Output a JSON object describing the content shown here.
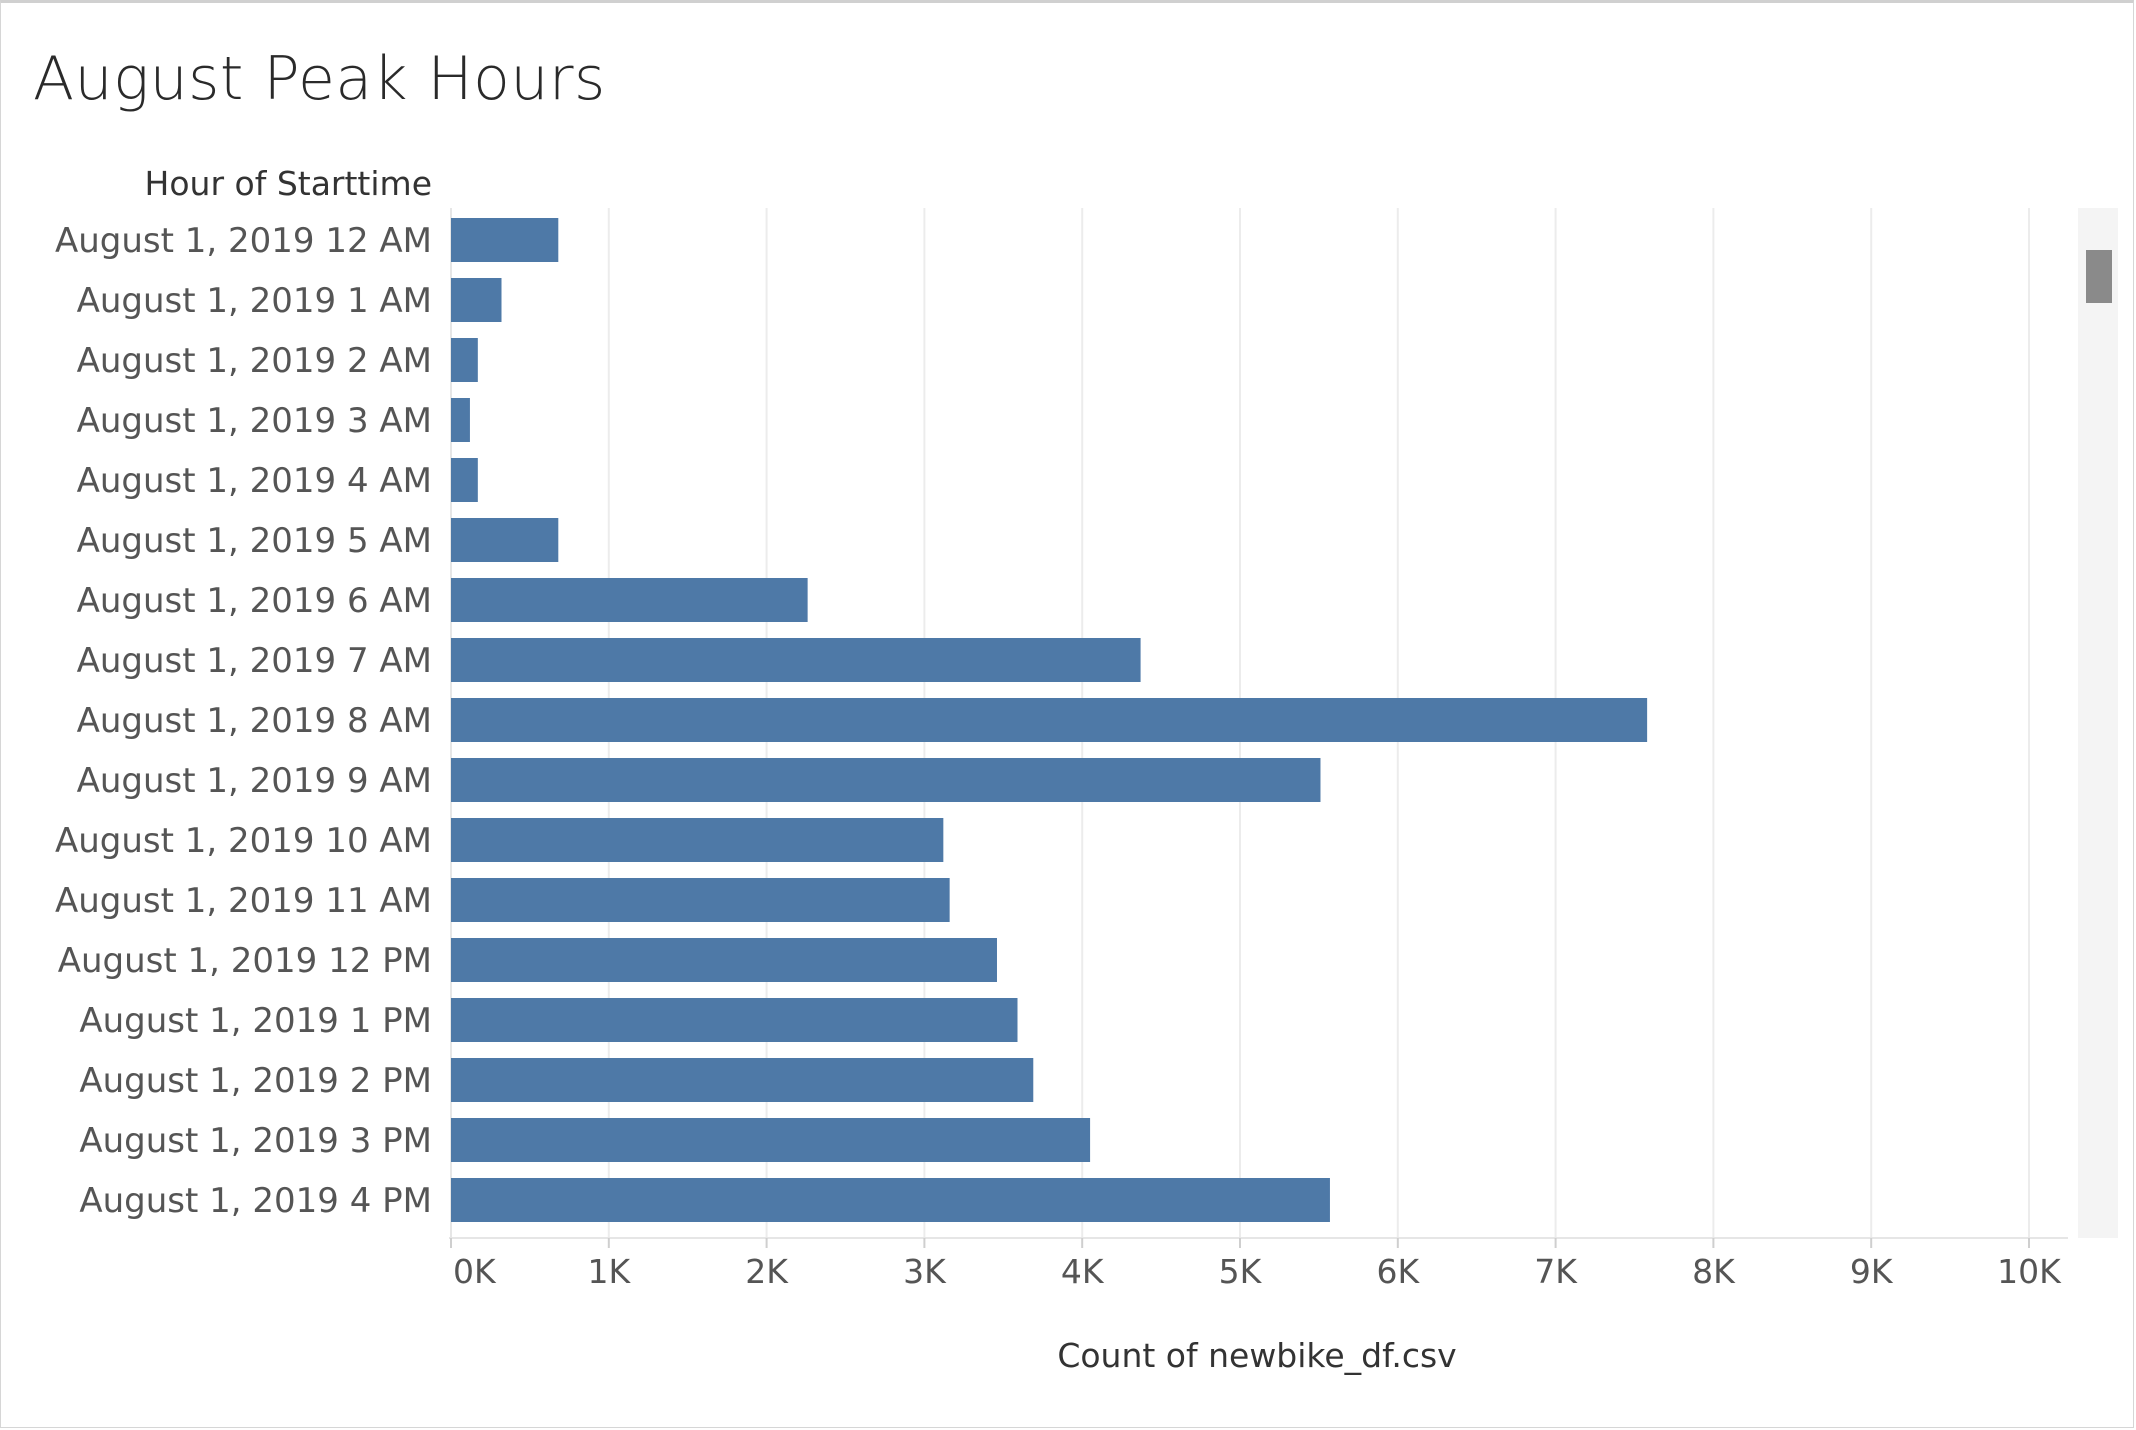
{
  "chart_data": {
    "type": "bar",
    "orientation": "horizontal",
    "title": "August Peak Hours",
    "row_header": "Hour of Starttime",
    "xlabel": "Count of newbike_df.csv",
    "ylabel": "",
    "categories": [
      "August 1, 2019 12 AM",
      "August 1, 2019 1 AM",
      "August 1, 2019 2 AM",
      "August 1, 2019 3 AM",
      "August 1, 2019 4 AM",
      "August 1, 2019 5 AM",
      "August 1, 2019 6 AM",
      "August 1, 2019 7 AM",
      "August 1, 2019 8 AM",
      "August 1, 2019 9 AM",
      "August 1, 2019 10 AM",
      "August 1, 2019 11 AM",
      "August 1, 2019 12 PM",
      "August 1, 2019 1 PM",
      "August 1, 2019 2 PM",
      "August 1, 2019 3 PM",
      "August 1, 2019 4 PM"
    ],
    "values": [
      680,
      320,
      170,
      120,
      170,
      680,
      2260,
      4370,
      7580,
      5510,
      3120,
      3160,
      3460,
      3590,
      3690,
      4050,
      5570
    ],
    "xlim": [
      0,
      10300
    ],
    "xticks": [
      0,
      1000,
      2000,
      3000,
      4000,
      5000,
      6000,
      7000,
      8000,
      9000,
      10000
    ],
    "xtick_labels": [
      "0K",
      "1K",
      "2K",
      "3K",
      "4K",
      "5K",
      "6K",
      "7K",
      "8K",
      "9K",
      "10K"
    ],
    "grid": true,
    "bar_color": "#4e79a7"
  },
  "colors": {
    "bar": "#4e79a7",
    "grid": "#ececec",
    "text": "#555555",
    "header": "#333333"
  }
}
